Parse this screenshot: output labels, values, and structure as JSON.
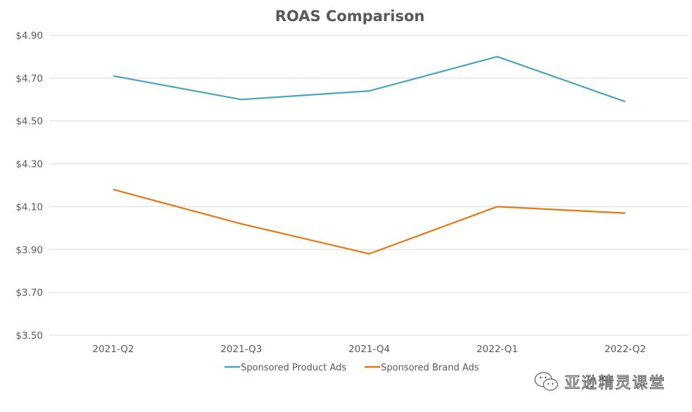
{
  "chart_data": {
    "type": "line",
    "title": "ROAS Comparison",
    "xlabel": "",
    "ylabel": "",
    "categories": [
      "2021-Q2",
      "2021-Q3",
      "2021-Q4",
      "2022-Q1",
      "2022-Q2"
    ],
    "series": [
      {
        "name": "Sponsored Product Ads",
        "color": "#4BA3C3",
        "values": [
          4.71,
          4.6,
          4.64,
          4.8,
          4.59
        ]
      },
      {
        "name": "Sponsored Brand Ads",
        "color": "#E8770F",
        "values": [
          4.18,
          4.02,
          3.88,
          4.1,
          4.07
        ]
      }
    ],
    "ylim": [
      3.5,
      4.9
    ],
    "yticks": [
      3.5,
      3.7,
      3.9,
      4.1,
      4.3,
      4.5,
      4.7,
      4.9
    ],
    "ytick_labels": [
      "$3.50",
      "$3.70",
      "$3.90",
      "$4.10",
      "$4.30",
      "$4.50",
      "$4.70",
      "$4.90"
    ],
    "grid": true,
    "legend_position": "bottom"
  },
  "watermark": {
    "text": "亚逊精灵课堂",
    "icon": "wechat-icon"
  }
}
